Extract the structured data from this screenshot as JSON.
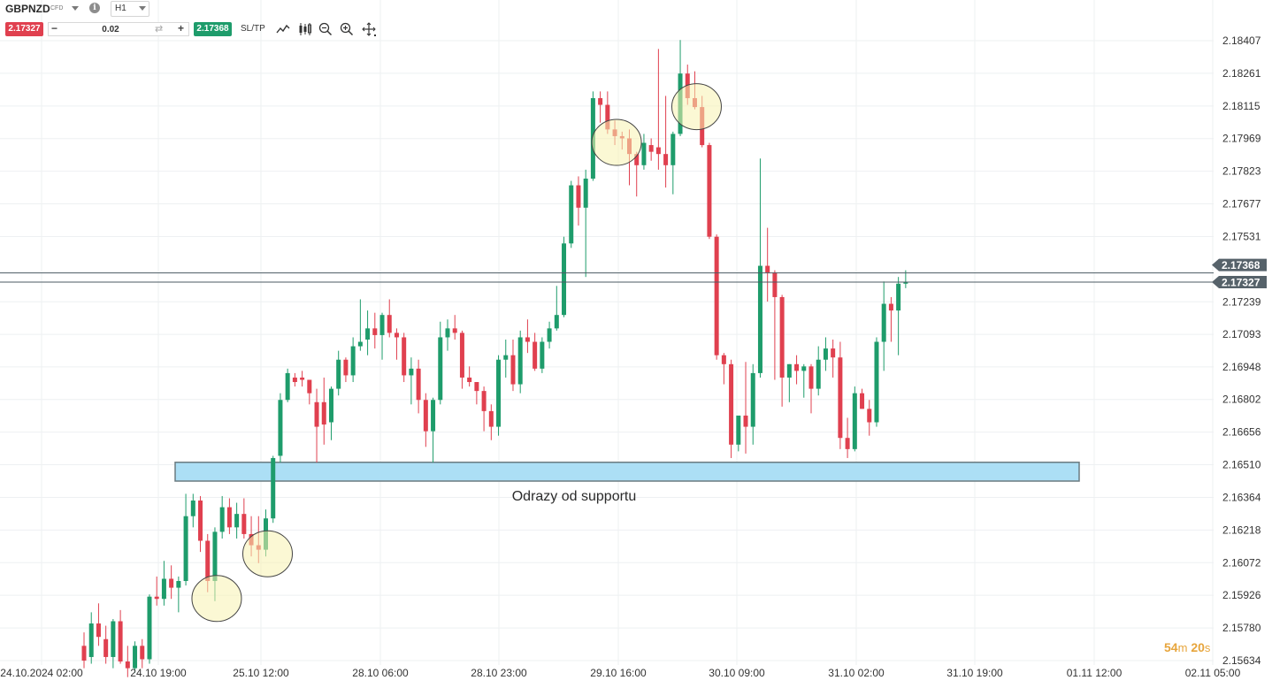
{
  "toolbar": {
    "symbol": "GBPNZD",
    "instrument_type": "CFD",
    "timeframe": "H1",
    "sell_price": "2.17327",
    "quantity": "0.02",
    "buy_price": "2.17368",
    "sltp_label": "SL/TP",
    "tool_icons": [
      "line-chart-icon",
      "candles-icon",
      "zoom-out-icon",
      "zoom-in-icon",
      "crosshair-icon"
    ]
  },
  "timer": {
    "minutes": "54",
    "minutes_unit": "m",
    "seconds": "20",
    "seconds_unit": "s"
  },
  "colors": {
    "bull": "#1e9c6b",
    "bear": "#e0404f",
    "zone_fill": "#acdff5",
    "zone_stroke": "#6b7b80",
    "highlight": "#f7f3b0",
    "grid": "#eef0f2"
  },
  "chart_data": {
    "type": "candlestick",
    "y_ticks": [
      2.18407,
      2.18261,
      2.18115,
      2.17969,
      2.17823,
      2.17677,
      2.17531,
      2.17239,
      2.17093,
      2.16948,
      2.16802,
      2.16656,
      2.1651,
      2.16364,
      2.16218,
      2.16072,
      2.15926,
      2.1578,
      2.15634
    ],
    "y_tick_labels": [
      "2.18407",
      "2.18261",
      "2.18115",
      "2.17969",
      "2.17823",
      "2.17677",
      "2.17531",
      "2.17239",
      "2.17093",
      "2.16948",
      "2.16802",
      "2.16656",
      "2.16510",
      "2.16364",
      "2.16218",
      "2.16072",
      "2.15926",
      "2.15780",
      "2.15634"
    ],
    "ylim": [
      2.15634,
      2.18407
    ],
    "x_labels": [
      "24.10.2024 02:00",
      "24.10 19:00",
      "25.10 12:00",
      "28.10 06:00",
      "28.10 23:00",
      "29.10 16:00",
      "30.10 09:00",
      "31.10 02:00",
      "31.10 19:00",
      "01.11 12:00",
      "02.11 05:00"
    ],
    "bid_line": {
      "value": 2.17327,
      "label": "2.17327"
    },
    "ask_line": {
      "value": 2.17368,
      "label": "2.17368"
    },
    "support_zone": {
      "low": 2.16437,
      "high": 2.16521,
      "label": "Odrazy od supportu"
    },
    "highlighted_bounces": [
      18,
      25,
      73,
      84
    ],
    "candles": [
      {
        "o": 2.157,
        "h": 2.1576,
        "l": 2.156,
        "c": 2.15634
      },
      {
        "o": 2.1565,
        "h": 2.1585,
        "l": 2.1562,
        "c": 2.158
      },
      {
        "o": 2.158,
        "h": 2.1589,
        "l": 2.157,
        "c": 2.1574
      },
      {
        "o": 2.1573,
        "h": 2.1579,
        "l": 2.1562,
        "c": 2.1565
      },
      {
        "o": 2.1565,
        "h": 2.1582,
        "l": 2.156,
        "c": 2.1581
      },
      {
        "o": 2.1581,
        "h": 2.1586,
        "l": 2.1562,
        "c": 2.1563
      },
      {
        "o": 2.1563,
        "h": 2.157,
        "l": 2.1556,
        "c": 2.156
      },
      {
        "o": 2.156,
        "h": 2.1572,
        "l": 2.1558,
        "c": 2.157
      },
      {
        "o": 2.157,
        "h": 2.1573,
        "l": 2.156,
        "c": 2.1564
      },
      {
        "o": 2.1564,
        "h": 2.1593,
        "l": 2.1562,
        "c": 2.1592
      },
      {
        "o": 2.1592,
        "h": 2.1601,
        "l": 2.1588,
        "c": 2.1591
      },
      {
        "o": 2.1591,
        "h": 2.1608,
        "l": 2.1588,
        "c": 2.16
      },
      {
        "o": 2.16,
        "h": 2.1606,
        "l": 2.1591,
        "c": 2.1596
      },
      {
        "o": 2.1596,
        "h": 2.1601,
        "l": 2.1585,
        "c": 2.1599
      },
      {
        "o": 2.1599,
        "h": 2.1638,
        "l": 2.1597,
        "c": 2.1628
      },
      {
        "o": 2.1628,
        "h": 2.1638,
        "l": 2.1623,
        "c": 2.1635
      },
      {
        "o": 2.1635,
        "h": 2.1637,
        "l": 2.1612,
        "c": 2.1617
      },
      {
        "o": 2.1617,
        "h": 2.162,
        "l": 2.1594,
        "c": 2.1599
      },
      {
        "o": 2.1599,
        "h": 2.1623,
        "l": 2.159,
        "c": 2.1621
      },
      {
        "o": 2.1621,
        "h": 2.1637,
        "l": 2.1618,
        "c": 2.1632
      },
      {
        "o": 2.1632,
        "h": 2.1636,
        "l": 2.162,
        "c": 2.1623
      },
      {
        "o": 2.1623,
        "h": 2.1634,
        "l": 2.1618,
        "c": 2.1629
      },
      {
        "o": 2.1629,
        "h": 2.1636,
        "l": 2.1618,
        "c": 2.162
      },
      {
        "o": 2.162,
        "h": 2.1628,
        "l": 2.161,
        "c": 2.1615
      },
      {
        "o": 2.1615,
        "h": 2.1628,
        "l": 2.1607,
        "c": 2.1613
      },
      {
        "o": 2.1613,
        "h": 2.1631,
        "l": 2.161,
        "c": 2.1627
      },
      {
        "o": 2.1627,
        "h": 2.1655,
        "l": 2.1625,
        "c": 2.1654
      },
      {
        "o": 2.1655,
        "h": 2.1683,
        "l": 2.1652,
        "c": 2.168
      },
      {
        "o": 2.168,
        "h": 2.1694,
        "l": 2.1679,
        "c": 2.1692
      },
      {
        "o": 2.169,
        "h": 2.1692,
        "l": 2.1686,
        "c": 2.1688
      },
      {
        "o": 2.169,
        "h": 2.1693,
        "l": 2.1686,
        "c": 2.1689
      },
      {
        "o": 2.1689,
        "h": 2.1689,
        "l": 2.1678,
        "c": 2.1683
      },
      {
        "o": 2.1679,
        "h": 2.1685,
        "l": 2.1652,
        "c": 2.1668
      },
      {
        "o": 2.1679,
        "h": 2.169,
        "l": 2.166,
        "c": 2.1669
      },
      {
        "o": 2.167,
        "h": 2.1686,
        "l": 2.1662,
        "c": 2.1685
      },
      {
        "o": 2.1685,
        "h": 2.1702,
        "l": 2.1682,
        "c": 2.1698
      },
      {
        "o": 2.1698,
        "h": 2.1699,
        "l": 2.1688,
        "c": 2.1691
      },
      {
        "o": 2.1691,
        "h": 2.1708,
        "l": 2.1688,
        "c": 2.1704
      },
      {
        "o": 2.1704,
        "h": 2.1725,
        "l": 2.1702,
        "c": 2.1706
      },
      {
        "o": 2.1707,
        "h": 2.172,
        "l": 2.17,
        "c": 2.1712
      },
      {
        "o": 2.1712,
        "h": 2.1719,
        "l": 2.1703,
        "c": 2.1709
      },
      {
        "o": 2.1709,
        "h": 2.1719,
        "l": 2.1698,
        "c": 2.1718
      },
      {
        "o": 2.1718,
        "h": 2.1725,
        "l": 2.1708,
        "c": 2.171
      },
      {
        "o": 2.171,
        "h": 2.1712,
        "l": 2.1698,
        "c": 2.1708
      },
      {
        "o": 2.1708,
        "h": 2.171,
        "l": 2.1688,
        "c": 2.1691
      },
      {
        "o": 2.1691,
        "h": 2.1699,
        "l": 2.1678,
        "c": 2.1694
      },
      {
        "o": 2.1694,
        "h": 2.1698,
        "l": 2.1674,
        "c": 2.168
      },
      {
        "o": 2.168,
        "h": 2.1683,
        "l": 2.1659,
        "c": 2.1666
      },
      {
        "o": 2.1666,
        "h": 2.1681,
        "l": 2.1652,
        "c": 2.168
      },
      {
        "o": 2.168,
        "h": 2.1715,
        "l": 2.1678,
        "c": 2.1708
      },
      {
        "o": 2.1708,
        "h": 2.1716,
        "l": 2.1702,
        "c": 2.1712
      },
      {
        "o": 2.1712,
        "h": 2.1718,
        "l": 2.1707,
        "c": 2.171
      },
      {
        "o": 2.171,
        "h": 2.1711,
        "l": 2.1685,
        "c": 2.169
      },
      {
        "o": 2.169,
        "h": 2.1695,
        "l": 2.1686,
        "c": 2.1688
      },
      {
        "o": 2.1688,
        "h": 2.1688,
        "l": 2.1678,
        "c": 2.1684
      },
      {
        "o": 2.1684,
        "h": 2.1686,
        "l": 2.1666,
        "c": 2.1675
      },
      {
        "o": 2.1675,
        "h": 2.1678,
        "l": 2.1662,
        "c": 2.1668
      },
      {
        "o": 2.1668,
        "h": 2.17,
        "l": 2.1664,
        "c": 2.1698
      },
      {
        "o": 2.1698,
        "h": 2.1707,
        "l": 2.169,
        "c": 2.17
      },
      {
        "o": 2.17,
        "h": 2.1707,
        "l": 2.1684,
        "c": 2.1687
      },
      {
        "o": 2.1687,
        "h": 2.1711,
        "l": 2.1683,
        "c": 2.1708
      },
      {
        "o": 2.1708,
        "h": 2.1716,
        "l": 2.1701,
        "c": 2.1706
      },
      {
        "o": 2.1706,
        "h": 2.171,
        "l": 2.1693,
        "c": 2.1694
      },
      {
        "o": 2.1694,
        "h": 2.1708,
        "l": 2.1692,
        "c": 2.1706
      },
      {
        "o": 2.1706,
        "h": 2.1715,
        "l": 2.1703,
        "c": 2.1712
      },
      {
        "o": 2.1712,
        "h": 2.1731,
        "l": 2.1711,
        "c": 2.1718
      },
      {
        "o": 2.1718,
        "h": 2.1753,
        "l": 2.1717,
        "c": 2.175
      },
      {
        "o": 2.175,
        "h": 2.1778,
        "l": 2.1748,
        "c": 2.1776
      },
      {
        "o": 2.1776,
        "h": 2.178,
        "l": 2.1758,
        "c": 2.1766
      },
      {
        "o": 2.1766,
        "h": 2.1783,
        "l": 2.1735,
        "c": 2.1779
      },
      {
        "o": 2.1779,
        "h": 2.1818,
        "l": 2.1778,
        "c": 2.1815
      },
      {
        "o": 2.1815,
        "h": 2.1818,
        "l": 2.1804,
        "c": 2.1812
      },
      {
        "o": 2.1812,
        "h": 2.1818,
        "l": 2.1799,
        "c": 2.1801
      },
      {
        "o": 2.1801,
        "h": 2.1805,
        "l": 2.1794,
        "c": 2.1798
      },
      {
        "o": 2.1798,
        "h": 2.18,
        "l": 2.1792,
        "c": 2.1797
      },
      {
        "o": 2.1797,
        "h": 2.1801,
        "l": 2.1776,
        "c": 2.179
      },
      {
        "o": 2.179,
        "h": 2.1791,
        "l": 2.1771,
        "c": 2.1785
      },
      {
        "o": 2.1785,
        "h": 2.1799,
        "l": 2.1783,
        "c": 2.1795
      },
      {
        "o": 2.1794,
        "h": 2.1797,
        "l": 2.1787,
        "c": 2.1791
      },
      {
        "o": 2.1793,
        "h": 2.1837,
        "l": 2.1783,
        "c": 2.179
      },
      {
        "o": 2.179,
        "h": 2.1816,
        "l": 2.1775,
        "c": 2.1785
      },
      {
        "o": 2.1785,
        "h": 2.18,
        "l": 2.1772,
        "c": 2.1799
      },
      {
        "o": 2.1799,
        "h": 2.1841,
        "l": 2.1798,
        "c": 2.1826
      },
      {
        "o": 2.1826,
        "h": 2.183,
        "l": 2.1812,
        "c": 2.1815
      },
      {
        "o": 2.1815,
        "h": 2.1827,
        "l": 2.181,
        "c": 2.1811
      },
      {
        "o": 2.1811,
        "h": 2.1816,
        "l": 2.1793,
        "c": 2.1794
      },
      {
        "o": 2.1794,
        "h": 2.1795,
        "l": 2.1752,
        "c": 2.1753
      },
      {
        "o": 2.1753,
        "h": 2.1754,
        "l": 2.1698,
        "c": 2.17
      },
      {
        "o": 2.17,
        "h": 2.1701,
        "l": 2.1687,
        "c": 2.1696
      },
      {
        "o": 2.1696,
        "h": 2.1698,
        "l": 2.1654,
        "c": 2.166
      },
      {
        "o": 2.166,
        "h": 2.1672,
        "l": 2.1657,
        "c": 2.1673
      },
      {
        "o": 2.1673,
        "h": 2.1697,
        "l": 2.1656,
        "c": 2.1668
      },
      {
        "o": 2.1668,
        "h": 2.1696,
        "l": 2.166,
        "c": 2.1692
      },
      {
        "o": 2.1692,
        "h": 2.1788,
        "l": 2.169,
        "c": 2.174
      },
      {
        "o": 2.174,
        "h": 2.1757,
        "l": 2.1724,
        "c": 2.1737
      },
      {
        "o": 2.1737,
        "h": 2.1738,
        "l": 2.1689,
        "c": 2.1726
      },
      {
        "o": 2.1726,
        "h": 2.1727,
        "l": 2.1677,
        "c": 2.169
      },
      {
        "o": 2.169,
        "h": 2.1696,
        "l": 2.1679,
        "c": 2.1696
      },
      {
        "o": 2.1696,
        "h": 2.17,
        "l": 2.1687,
        "c": 2.1693
      },
      {
        "o": 2.1693,
        "h": 2.1696,
        "l": 2.1681,
        "c": 2.1695
      },
      {
        "o": 2.1695,
        "h": 2.1696,
        "l": 2.1674,
        "c": 2.1685
      },
      {
        "o": 2.1685,
        "h": 2.1704,
        "l": 2.1682,
        "c": 2.1698
      },
      {
        "o": 2.1698,
        "h": 2.1708,
        "l": 2.1693,
        "c": 2.1703
      },
      {
        "o": 2.1703,
        "h": 2.1707,
        "l": 2.169,
        "c": 2.1699
      },
      {
        "o": 2.1699,
        "h": 2.1706,
        "l": 2.1658,
        "c": 2.1663
      },
      {
        "o": 2.1663,
        "h": 2.1672,
        "l": 2.1654,
        "c": 2.1658
      },
      {
        "o": 2.1658,
        "h": 2.1686,
        "l": 2.1657,
        "c": 2.1683
      },
      {
        "o": 2.1683,
        "h": 2.1685,
        "l": 2.1676,
        "c": 2.1676
      },
      {
        "o": 2.1676,
        "h": 2.168,
        "l": 2.1664,
        "c": 2.167
      },
      {
        "o": 2.167,
        "h": 2.1708,
        "l": 2.1668,
        "c": 2.1706
      },
      {
        "o": 2.1706,
        "h": 2.1733,
        "l": 2.1693,
        "c": 2.1723
      },
      {
        "o": 2.1723,
        "h": 2.1726,
        "l": 2.1706,
        "c": 2.172
      },
      {
        "o": 2.172,
        "h": 2.1735,
        "l": 2.17,
        "c": 2.1732
      },
      {
        "o": 2.1732,
        "h": 2.1738,
        "l": 2.173,
        "c": 2.17327
      }
    ]
  }
}
